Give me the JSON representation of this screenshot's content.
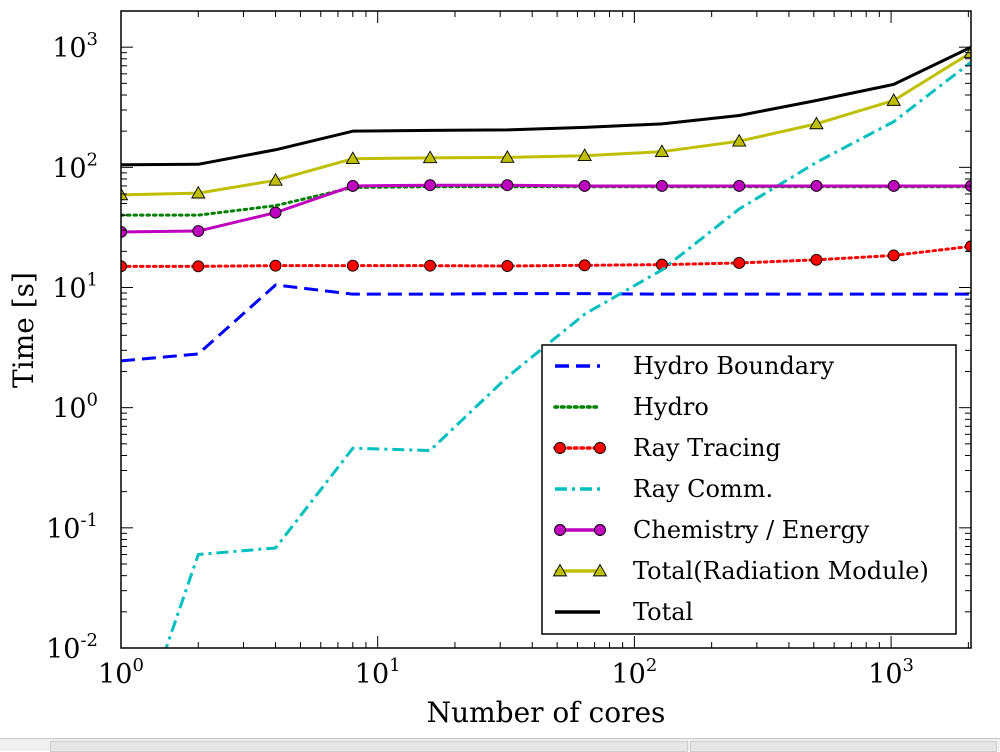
{
  "chart_data": {
    "type": "line",
    "xscale": "log",
    "yscale": "log",
    "xlim": [
      1,
      2048
    ],
    "ylim": [
      0.01,
      2000
    ],
    "xlabel": "Number of cores",
    "ylabel": "Time [s]",
    "x_ticks": [
      {
        "base": "10",
        "exp": "0",
        "value": 1
      },
      {
        "base": "10",
        "exp": "1",
        "value": 10
      },
      {
        "base": "10",
        "exp": "2",
        "value": 100
      },
      {
        "base": "10",
        "exp": "3",
        "value": 1000
      }
    ],
    "y_ticks": [
      {
        "base": "10",
        "exp": "-2",
        "value": 0.01
      },
      {
        "base": "10",
        "exp": "-1",
        "value": 0.1
      },
      {
        "base": "10",
        "exp": "0",
        "value": 1
      },
      {
        "base": "10",
        "exp": "1",
        "value": 10
      },
      {
        "base": "10",
        "exp": "2",
        "value": 100
      },
      {
        "base": "10",
        "exp": "3",
        "value": 1000
      }
    ],
    "legend_position": "lower-right",
    "grid": false,
    "series": [
      {
        "name": "Hydro Boundary",
        "color": "#0000ff",
        "style": "dashed",
        "marker": "none",
        "x": [
          1,
          2,
          4,
          8,
          16,
          32,
          64,
          128,
          256,
          512,
          1024,
          2048
        ],
        "y": [
          2.45,
          2.8,
          10.5,
          8.8,
          8.8,
          8.9,
          8.9,
          8.8,
          8.8,
          8.8,
          8.8,
          8.8
        ]
      },
      {
        "name": "Hydro",
        "color": "#008000",
        "style": "dotted",
        "marker": "none",
        "x": [
          1,
          2,
          4,
          8,
          16,
          32,
          64,
          128,
          256,
          512,
          1024,
          2048
        ],
        "y": [
          40,
          40,
          48,
          68,
          69,
          69,
          69,
          69,
          69,
          69,
          69,
          69
        ]
      },
      {
        "name": "Ray Tracing",
        "color": "#ff0000",
        "style": "dotted",
        "marker": "circle",
        "x": [
          1,
          2,
          4,
          8,
          16,
          32,
          64,
          128,
          256,
          512,
          1024,
          2048
        ],
        "y": [
          15,
          15,
          15.2,
          15.2,
          15.2,
          15.1,
          15.3,
          15.5,
          16,
          17,
          18.5,
          22
        ]
      },
      {
        "name": "Ray Comm.",
        "color": "#00bfbf",
        "style": "dashdot",
        "marker": "none",
        "x": [
          1,
          1.5,
          2,
          4,
          8,
          16,
          32,
          64,
          128,
          256,
          512,
          1024,
          2048
        ],
        "y": [
          0.005,
          0.01,
          0.06,
          0.068,
          0.46,
          0.44,
          1.8,
          6,
          14,
          45,
          110,
          240,
          750
        ]
      },
      {
        "name": "Chemistry / Energy",
        "color": "#bf00bf",
        "style": "solid",
        "marker": "circle",
        "x": [
          1,
          2,
          4,
          8,
          16,
          32,
          64,
          128,
          256,
          512,
          1024,
          2048
        ],
        "y": [
          29,
          29.5,
          42,
          70,
          71,
          71,
          70,
          70,
          70,
          70,
          70,
          70
        ]
      },
      {
        "name": "Total(Radiation Module)",
        "color": "#bfbf00",
        "style": "solid",
        "marker": "triangle",
        "x": [
          1,
          2,
          4,
          8,
          16,
          32,
          64,
          128,
          256,
          512,
          1024,
          2048
        ],
        "y": [
          59,
          61,
          78,
          118,
          120,
          121,
          125,
          135,
          165,
          230,
          360,
          900
        ]
      },
      {
        "name": "Total",
        "color": "#000000",
        "style": "solid",
        "marker": "none",
        "x": [
          1,
          2,
          4,
          8,
          16,
          32,
          64,
          128,
          256,
          512,
          1024,
          2048
        ],
        "y": [
          105,
          106,
          140,
          200,
          203,
          205,
          215,
          230,
          270,
          360,
          490,
          1000
        ]
      }
    ]
  }
}
